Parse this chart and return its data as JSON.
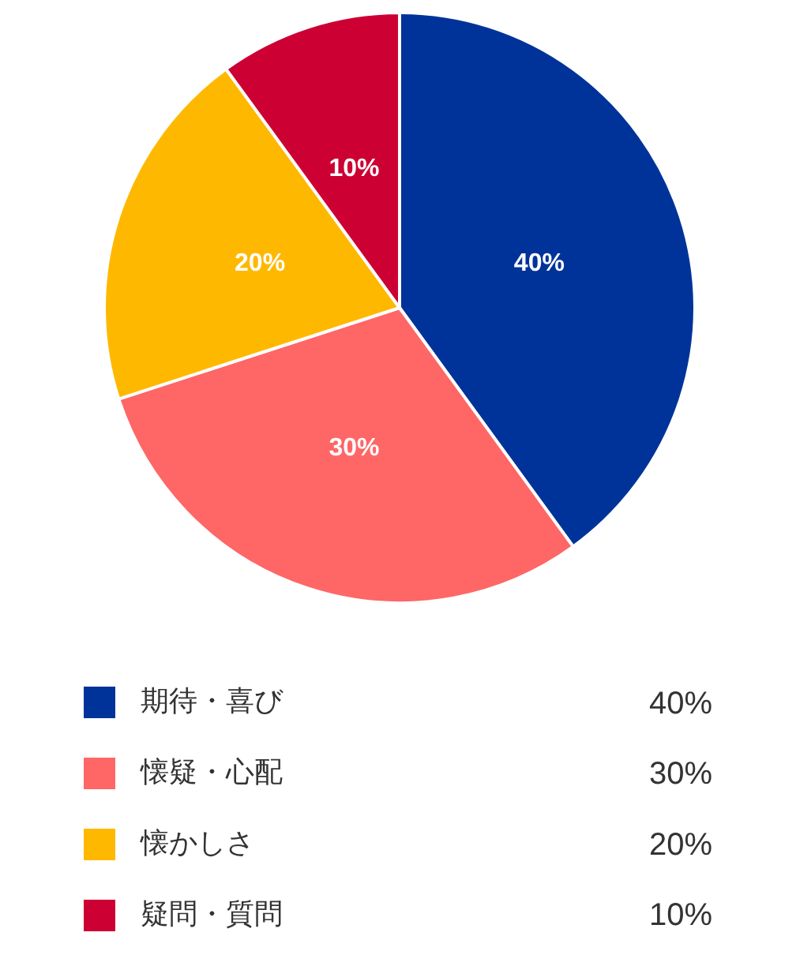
{
  "chart_data": {
    "type": "pie",
    "categories": [
      "期待・喜び",
      "懐疑・心配",
      "懐かしさ",
      "疑問・質問"
    ],
    "values": [
      40,
      30,
      20,
      10
    ],
    "colors": [
      "#003399",
      "#ff6666",
      "#ffb800",
      "#cc0033"
    ],
    "value_labels": [
      "40%",
      "30%",
      "20%",
      "10%"
    ],
    "legend": "bottom"
  }
}
